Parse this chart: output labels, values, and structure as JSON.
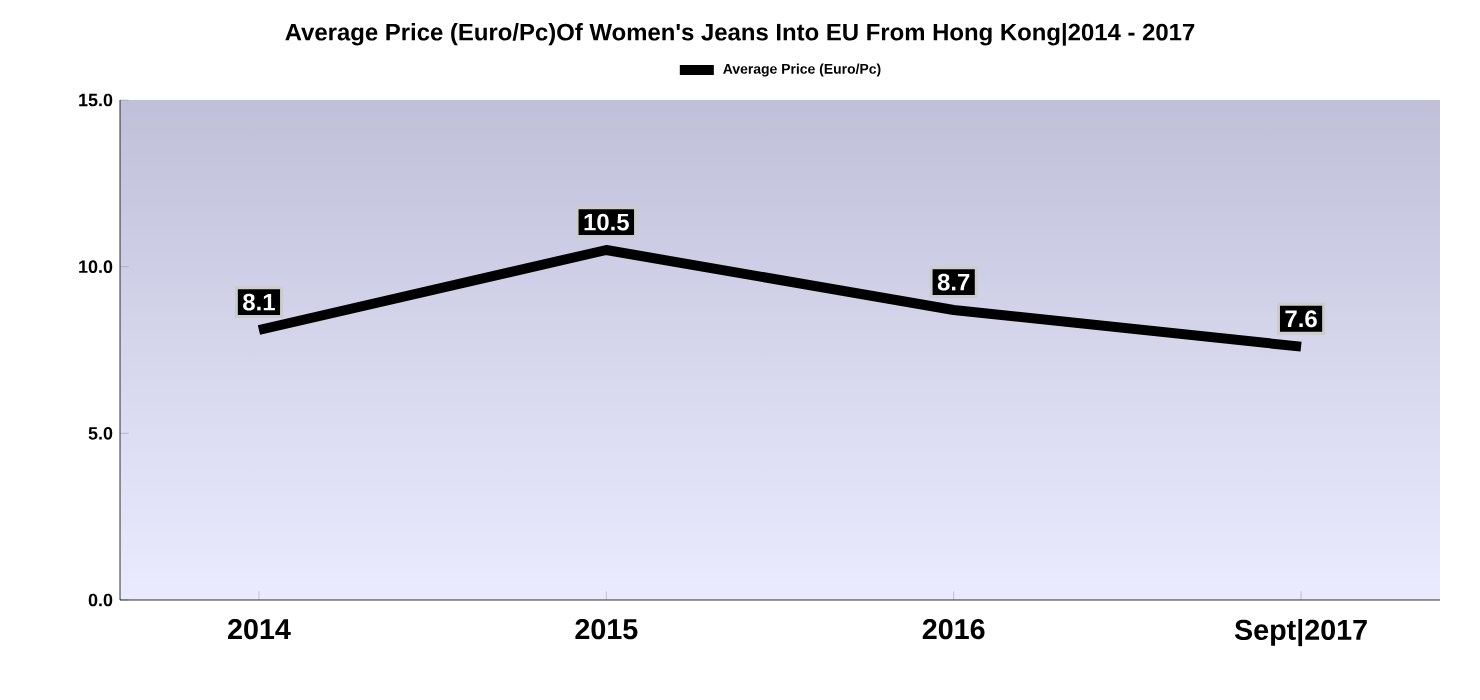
{
  "chart_data": {
    "type": "line",
    "title": "Average Price (Euro/Pc)Of Women's Jeans Into EU From Hong Kong|2014 - 2017",
    "categories": [
      "2014",
      "2015",
      "2016",
      "Sept|2017"
    ],
    "series": [
      {
        "name": "Average Price (Euro/Pc)",
        "color": "#000000",
        "values": [
          8.1,
          10.5,
          8.7,
          7.6
        ]
      }
    ],
    "ylim": [
      0,
      15
    ],
    "yticks": [
      {
        "value": 0,
        "label": "0.0"
      },
      {
        "value": 5,
        "label": "5.0"
      },
      {
        "value": 10,
        "label": "10.0"
      },
      {
        "value": 15,
        "label": "15.0"
      }
    ],
    "data_labels": true,
    "legend": "top",
    "marker": "none",
    "line_style": "solid",
    "grid": false
  }
}
